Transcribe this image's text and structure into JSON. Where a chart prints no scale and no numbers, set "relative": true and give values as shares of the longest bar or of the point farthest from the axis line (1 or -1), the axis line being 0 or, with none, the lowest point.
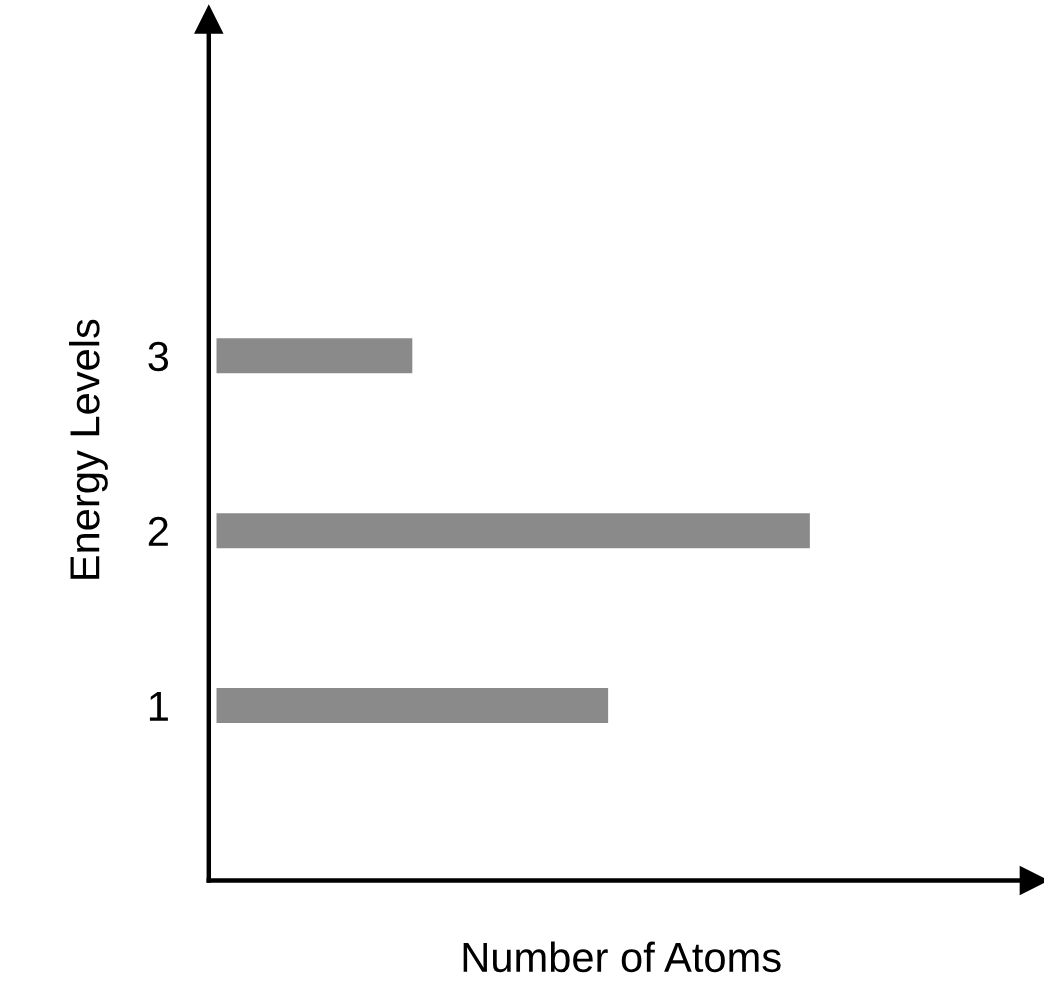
{
  "chart_data": {
    "type": "bar",
    "orientation": "horizontal",
    "relative": true,
    "categories": [
      "3",
      "2",
      "1"
    ],
    "values": [
      0.33,
      1,
      0.66
    ],
    "color": "#8a8a8a",
    "xlabel": "Number of Atoms",
    "ylabel": "Energy Levels",
    "grid": false,
    "legend": false
  }
}
